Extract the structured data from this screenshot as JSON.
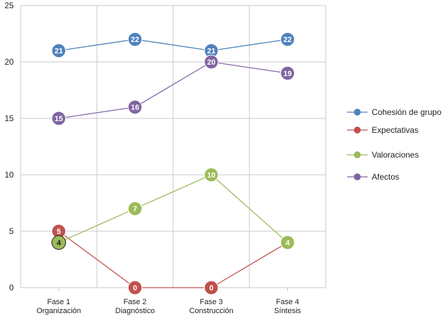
{
  "chart_data": {
    "type": "line",
    "categories": [
      [
        "Fase 1",
        "Organización"
      ],
      [
        "Fase 2",
        "Diagnóstico"
      ],
      [
        "Fase 3",
        "Construcción"
      ],
      [
        "Fase 4",
        "Síntesis"
      ]
    ],
    "ylim": [
      0,
      25
    ],
    "yticks": [
      0,
      5,
      10,
      15,
      20,
      25
    ],
    "grid": true,
    "legend_position": "right",
    "series": [
      {
        "name": "Cohesión de grupo",
        "color": "#4f81bd",
        "values": [
          21,
          22,
          21,
          22
        ]
      },
      {
        "name": "Expectativas",
        "color": "#c0504d",
        "values": [
          5,
          0,
          0,
          4
        ]
      },
      {
        "name": "Valoraciones",
        "color": "#9bbb59",
        "values": [
          4,
          7,
          10,
          4
        ]
      },
      {
        "name": "Afectos",
        "color": "#8064a2",
        "values": [
          15,
          16,
          20,
          19
        ]
      }
    ]
  }
}
